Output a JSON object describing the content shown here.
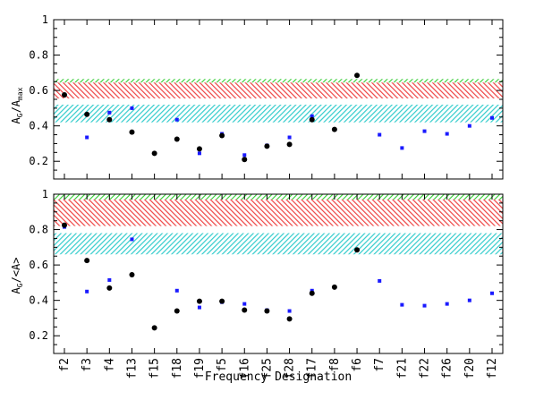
{
  "chart_data": [
    {
      "type": "scatter",
      "ylabel_main": "A",
      "ylabel_sub": "G",
      "ylabel_rest": "/A",
      "ylabel_rest_sub": "max",
      "ylim": [
        0.1,
        1.0
      ],
      "yticks": [
        "0.2",
        "0.4",
        "0.6",
        "0.8",
        "1"
      ],
      "ytick_values": [
        0.2,
        0.4,
        0.6,
        0.8,
        1.0
      ],
      "bands": [
        {
          "color": "#33cc33",
          "y0": 0.585,
          "y1": 0.665
        },
        {
          "color": "#ee4444",
          "y0": 0.555,
          "y1": 0.645
        },
        {
          "color": "#33cccc",
          "y0": 0.42,
          "y1": 0.52
        }
      ],
      "series": [
        {
          "marker": "circle",
          "color": "#000000",
          "values": [
            0.575,
            0.465,
            0.435,
            0.365,
            0.245,
            0.325,
            0.27,
            0.345,
            0.21,
            0.285,
            0.295,
            0.435,
            0.38,
            0.685
          ]
        },
        {
          "marker": "square",
          "color": "#1a1aff",
          "values": [
            0.575,
            0.335,
            0.475,
            0.5,
            0.245,
            0.435,
            0.245,
            0.355,
            0.235,
            0.29,
            0.335,
            0.455,
            null,
            null,
            0.35,
            0.275,
            0.37,
            0.355,
            0.4,
            0.445
          ]
        }
      ]
    },
    {
      "type": "scatter",
      "ylabel_main": "A",
      "ylabel_sub": "G",
      "ylabel_rest": "/<A>",
      "ylabel_rest_sub": "",
      "ylim": [
        0.1,
        1.0
      ],
      "yticks": [
        "0.2",
        "0.4",
        "0.6",
        "0.8",
        "1"
      ],
      "ytick_values": [
        0.2,
        0.4,
        0.6,
        0.8,
        1.0
      ],
      "bands": [
        {
          "color": "#33cc33",
          "y0": 0.9,
          "y1": 1.0
        },
        {
          "color": "#ee4444",
          "y0": 0.82,
          "y1": 0.97
        },
        {
          "color": "#33cccc",
          "y0": 0.66,
          "y1": 0.78
        }
      ],
      "series": [
        {
          "marker": "circle",
          "color": "#000000",
          "values": [
            0.825,
            0.625,
            0.47,
            0.545,
            0.245,
            0.34,
            0.395,
            0.395,
            0.345,
            0.34,
            0.295,
            0.44,
            0.475,
            0.685
          ]
        },
        {
          "marker": "square",
          "color": "#1a1aff",
          "values": [
            0.815,
            0.45,
            0.515,
            0.745,
            0.245,
            0.455,
            0.36,
            0.39,
            0.38,
            0.345,
            0.34,
            0.455,
            null,
            null,
            0.51,
            0.375,
            0.37,
            0.38,
            0.4,
            0.44
          ]
        }
      ]
    }
  ],
  "xaxis": {
    "categories": [
      "f2",
      "f3",
      "f4",
      "f13",
      "f15",
      "f18",
      "f19",
      "f5",
      "f16",
      "f25",
      "f28",
      "f17",
      "f8",
      "f6",
      "f7",
      "f21",
      "f22",
      "f26",
      "f20",
      "f12"
    ],
    "label": "Frequency Designation"
  }
}
